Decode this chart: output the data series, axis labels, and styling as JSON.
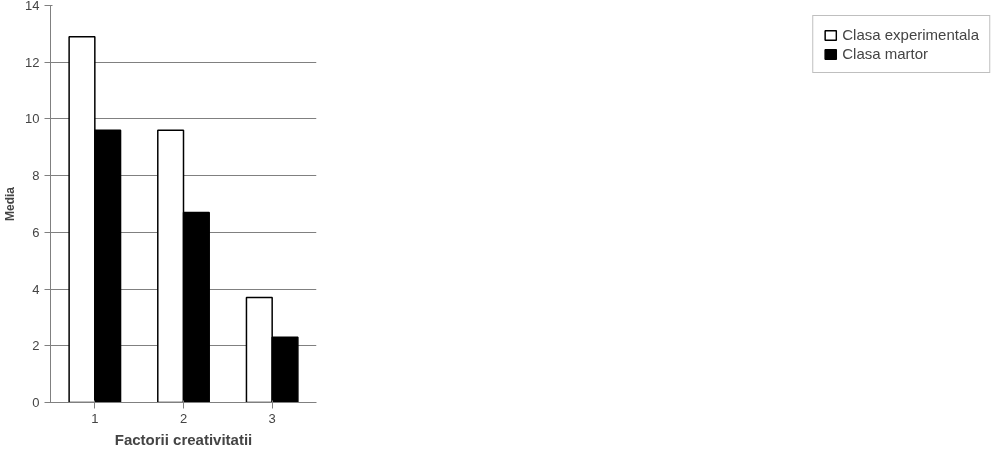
{
  "chart_data": {
    "type": "bar",
    "xlabel": "Factorii creativitatii",
    "ylabel": "Media",
    "categories": [
      "1",
      "2",
      "3"
    ],
    "series": [
      {
        "name": "Clasa experimentala",
        "color": "#ffffff",
        "values": [
          12.9,
          9.6,
          3.7
        ]
      },
      {
        "name": "Clasa martor",
        "color": "#000000",
        "values": [
          9.6,
          6.7,
          2.3
        ]
      }
    ],
    "ylim": [
      0,
      14
    ],
    "yticks": [
      0,
      2,
      4,
      6,
      8,
      10,
      12,
      14
    ],
    "grid": "y",
    "legend": "right"
  }
}
